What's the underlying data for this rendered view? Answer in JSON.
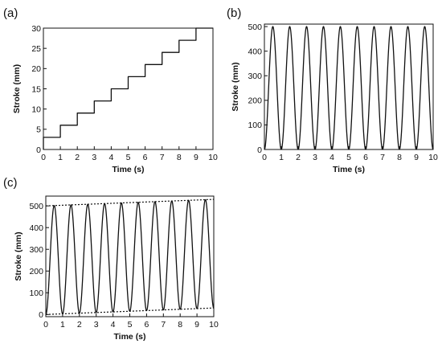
{
  "chart_data": [
    {
      "panel_label": "(a)",
      "type": "line",
      "style": "staircase",
      "xlabel": "Time (s)",
      "ylabel": "Stroke (mm)",
      "xlim": [
        0,
        10
      ],
      "ylim": [
        0,
        30
      ],
      "xticks": [
        0,
        1,
        2,
        3,
        4,
        5,
        6,
        7,
        8,
        9,
        10
      ],
      "yticks": [
        0,
        5,
        10,
        15,
        20,
        25,
        30
      ],
      "grid": false,
      "series": [
        {
          "x": [
            0,
            0,
            1,
            1,
            2,
            2,
            3,
            3,
            4,
            4,
            5,
            5,
            6,
            6,
            7,
            7,
            8,
            8,
            9,
            9,
            10
          ],
          "y": [
            0,
            3,
            3,
            6,
            6,
            9,
            9,
            12,
            12,
            15,
            15,
            18,
            18,
            21,
            21,
            24,
            24,
            27,
            27,
            30,
            30
          ]
        }
      ]
    },
    {
      "panel_label": "(b)",
      "type": "line",
      "style": "sinusoid",
      "xlabel": "Time (s)",
      "ylabel": "Stroke (mm)",
      "xlim": [
        0,
        10
      ],
      "ylim": [
        0,
        510
      ],
      "xticks": [
        0,
        1,
        2,
        3,
        4,
        5,
        6,
        7,
        8,
        9,
        10
      ],
      "yticks": [
        0,
        100,
        200,
        300,
        400,
        500
      ],
      "grid": false,
      "series": [
        {
          "min": 0,
          "max": 500,
          "peaks_at_x": [
            0.5,
            1.5,
            2.5,
            3.5,
            4.5,
            5.5,
            6.5,
            7.5,
            8.5,
            9.5
          ],
          "troughs_at_x": [
            0,
            1,
            2,
            3,
            4,
            5,
            6,
            7,
            8,
            9,
            10
          ]
        }
      ]
    },
    {
      "panel_label": "(c)",
      "type": "line",
      "style": "sinusoid-with-drift",
      "xlabel": "Time (s)",
      "ylabel": "Stroke (mm)",
      "xlim": [
        0,
        10
      ],
      "ylim": [
        -10,
        545
      ],
      "xticks": [
        0,
        1,
        2,
        3,
        4,
        5,
        6,
        7,
        8,
        9,
        10
      ],
      "yticks": [
        0,
        100,
        200,
        300,
        400,
        500
      ],
      "grid": false,
      "series": [
        {
          "trough_start": 0,
          "trough_end": 30,
          "peak_start": 500,
          "peak_end": 530,
          "peaks_at_x": [
            0.5,
            1.5,
            2.5,
            3.5,
            4.5,
            5.5,
            6.5,
            7.5,
            8.5,
            9.5
          ],
          "troughs_at_x": [
            0,
            1,
            2,
            3,
            4,
            5,
            6,
            7,
            8,
            9,
            10
          ]
        }
      ],
      "envelopes": [
        {
          "style": "dotted",
          "x": [
            0,
            10
          ],
          "y": [
            500,
            530
          ]
        },
        {
          "style": "dotted",
          "x": [
            0,
            10
          ],
          "y": [
            0,
            30
          ]
        }
      ]
    }
  ]
}
